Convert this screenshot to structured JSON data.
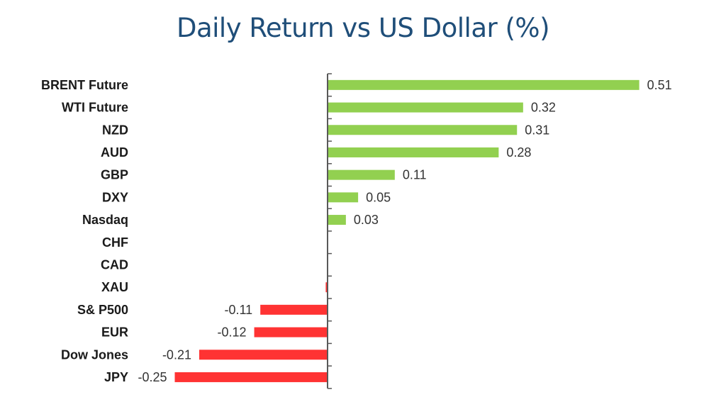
{
  "chart_data": {
    "type": "bar",
    "orientation": "horizontal",
    "title": "Daily Return vs US Dollar (%)",
    "xlabel": "",
    "ylabel": "",
    "categories": [
      "BRENT Future",
      "WTI Future",
      "NZD",
      "AUD",
      "GBP",
      "DXY",
      "Nasdaq",
      "CHF",
      "CAD",
      "XAU",
      "S& P500",
      "EUR",
      "Dow Jones",
      "JPY"
    ],
    "values": [
      0.51,
      0.32,
      0.31,
      0.28,
      0.11,
      0.05,
      0.03,
      0,
      0,
      -0.003,
      -0.11,
      -0.12,
      -0.21,
      -0.25
    ],
    "labels": [
      "0.51",
      "0.32",
      "0.31",
      "0.28",
      "0.11",
      "0.05",
      "0.03",
      "",
      "",
      "",
      "-0.11",
      "-0.12",
      "-0.21",
      "-0.25"
    ],
    "xlim": [
      -0.25,
      0.51
    ],
    "grid": false,
    "legend": "none",
    "colors": {
      "positive": "#92d050",
      "negative": "#ff3333",
      "axis": "#595959"
    }
  }
}
